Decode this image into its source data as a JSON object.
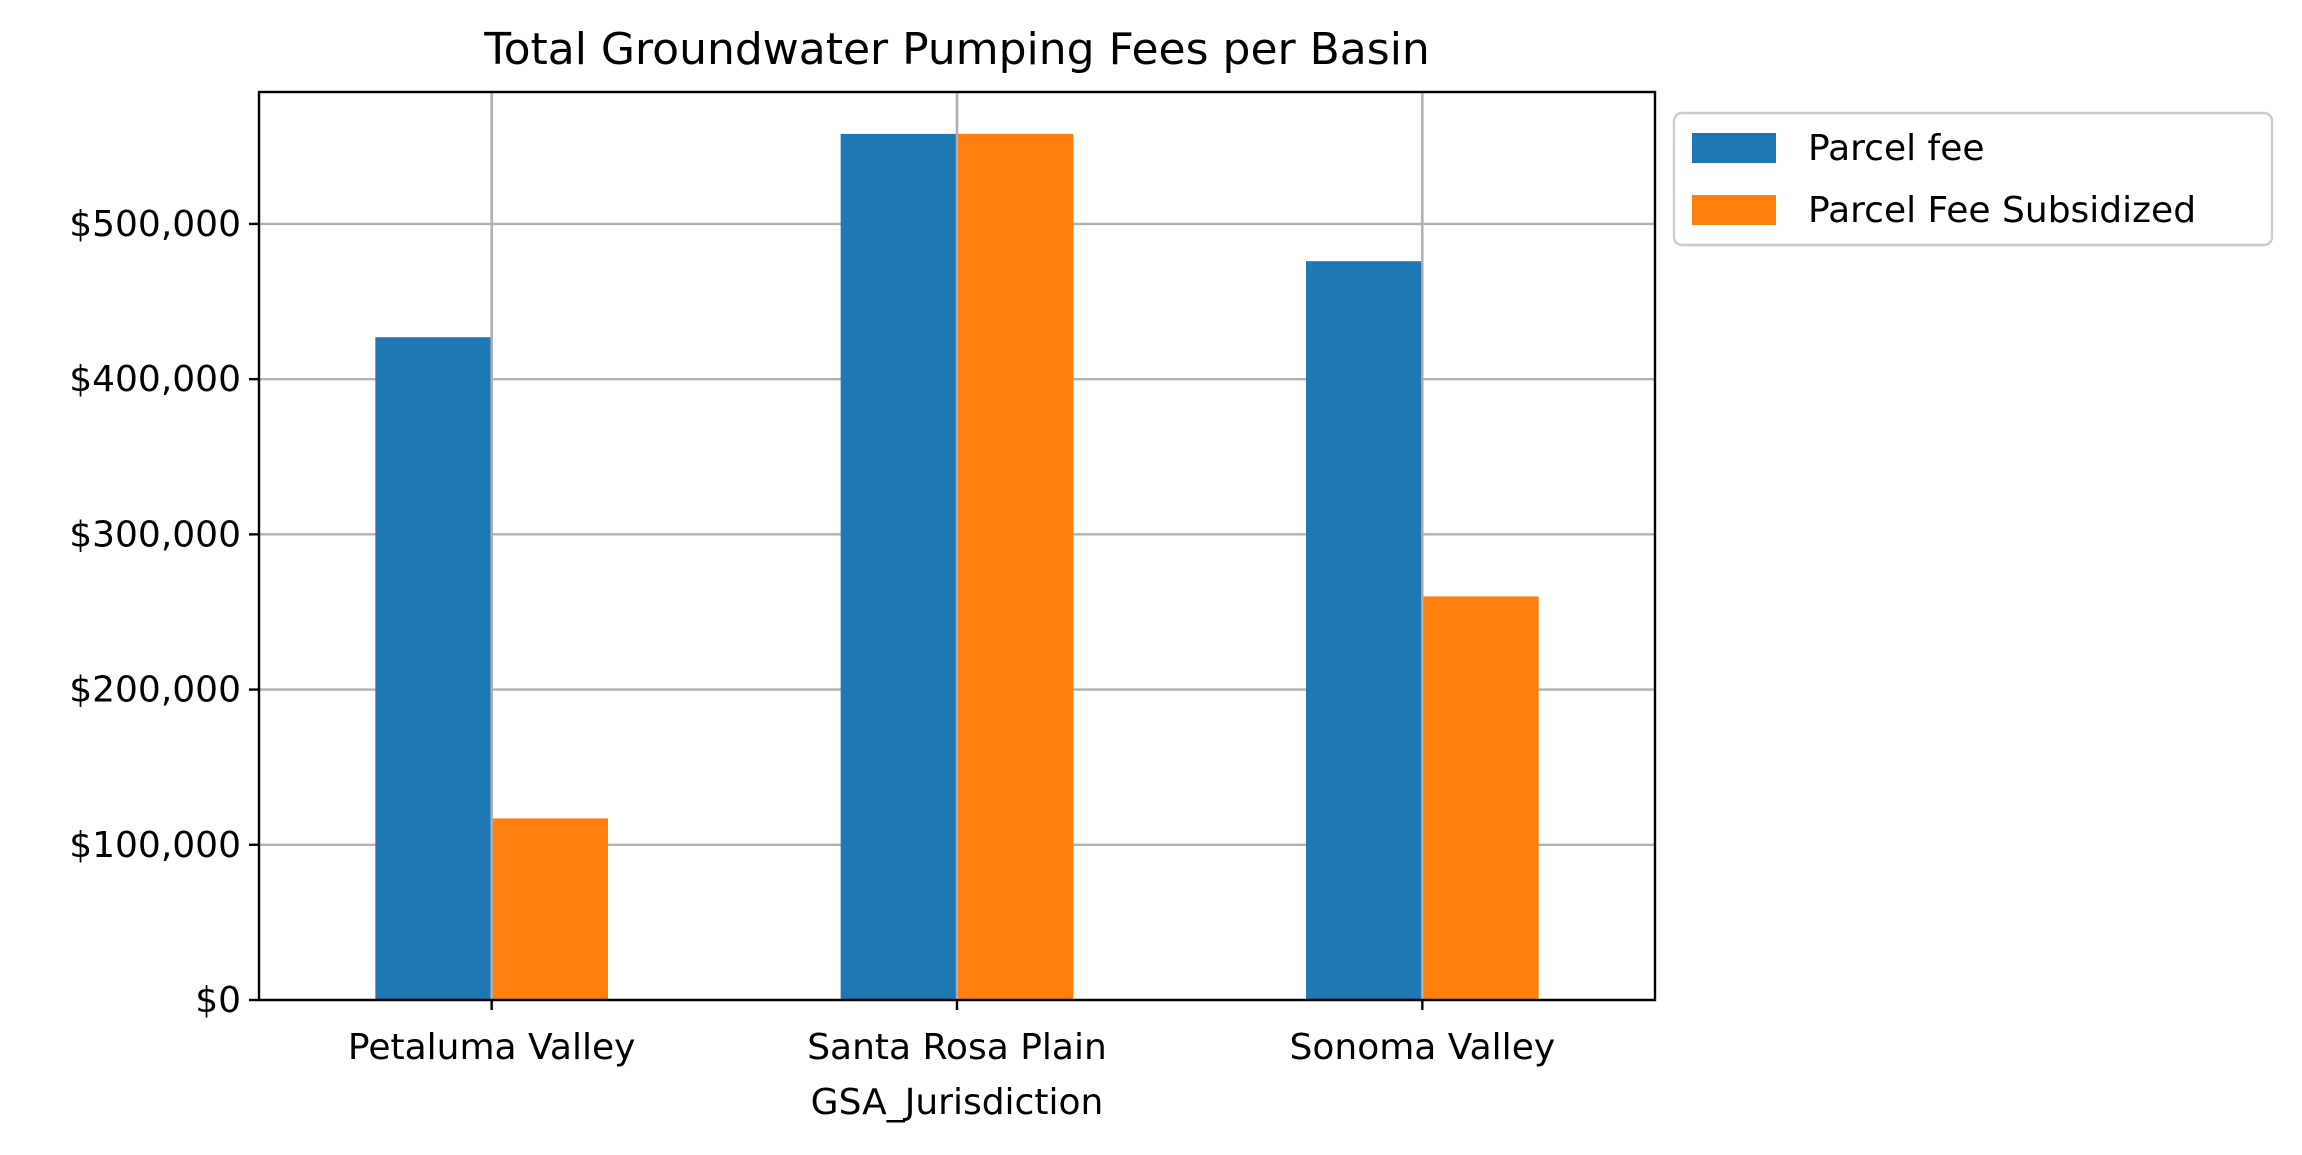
{
  "chart_data": {
    "type": "bar",
    "title": "Total Groundwater Pumping Fees per Basin",
    "xlabel": "GSA_Jurisdiction",
    "ylabel": "",
    "categories": [
      "Petaluma Valley",
      "Santa Rosa Plain",
      "Sonoma Valley"
    ],
    "series": [
      {
        "name": "Parcel fee",
        "color": "#1f77b4",
        "values": [
          427000,
          558000,
          476000
        ]
      },
      {
        "name": "Parcel Fee Subsidized",
        "color": "#ff7f0e",
        "values": [
          117000,
          558000,
          260000
        ]
      }
    ],
    "ylim": [
      0,
      585000
    ],
    "yticks": [
      0,
      100000,
      200000,
      300000,
      400000,
      500000
    ],
    "ytick_labels": [
      "$0",
      "$100,000",
      "$200,000",
      "$300,000",
      "$400,000",
      "$500,000"
    ],
    "grid": true,
    "legend": "outside upper right"
  }
}
